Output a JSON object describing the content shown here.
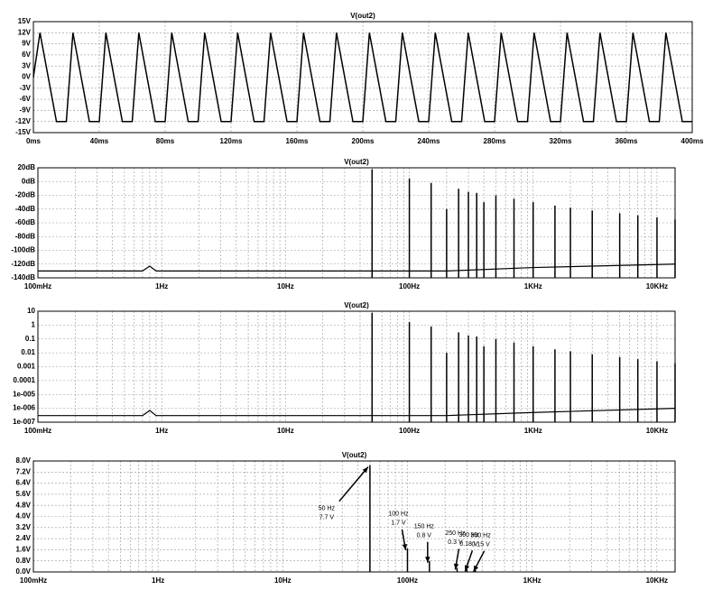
{
  "chart_data": [
    {
      "type": "line",
      "title": "V(out2)",
      "color": "#000000",
      "grid": true,
      "x": [
        0,
        4,
        14,
        20,
        24,
        34,
        40,
        44,
        54,
        60,
        64,
        74,
        80,
        84,
        94,
        100,
        104,
        114,
        120,
        124,
        134,
        140,
        144,
        154,
        160,
        164,
        174,
        180,
        184,
        194,
        200,
        204,
        214,
        220,
        224,
        234,
        240,
        244,
        254,
        260,
        264,
        274,
        280,
        284,
        294,
        300,
        304,
        314,
        320,
        324,
        334,
        340,
        344,
        354,
        360,
        364,
        374,
        380,
        384,
        394,
        400
      ],
      "values": [
        0,
        12,
        -12,
        -12,
        12,
        -12,
        -12,
        12,
        -12,
        -12,
        12,
        -12,
        -12,
        12,
        -12,
        -12,
        12,
        -12,
        -12,
        12,
        -12,
        -12,
        12,
        -12,
        -12,
        12,
        -12,
        -12,
        12,
        -12,
        -12,
        12,
        -12,
        -12,
        12,
        -12,
        -12,
        12,
        -12,
        -12,
        12,
        -12,
        -12,
        12,
        -12,
        -12,
        12,
        -12,
        -12,
        12,
        -12,
        -12,
        12,
        -12,
        -12,
        12,
        -12,
        -12,
        12,
        -12,
        -12
      ],
      "xlim": [
        0,
        400
      ],
      "xticks": [
        {
          "value": 0,
          "label": "0ms"
        },
        {
          "value": 40,
          "label": "40ms"
        },
        {
          "value": 80,
          "label": "80ms"
        },
        {
          "value": 120,
          "label": "120ms"
        },
        {
          "value": 160,
          "label": "160ms"
        },
        {
          "value": 200,
          "label": "200ms"
        },
        {
          "value": 240,
          "label": "240ms"
        },
        {
          "value": 280,
          "label": "280ms"
        },
        {
          "value": 320,
          "label": "320ms"
        },
        {
          "value": 360,
          "label": "360ms"
        },
        {
          "value": 400,
          "label": "400ms"
        }
      ],
      "ylim": [
        -15,
        15
      ],
      "yticks": [
        {
          "value": -15,
          "label": "-15V"
        },
        {
          "value": -12,
          "label": "-12V"
        },
        {
          "value": -9,
          "label": "-9V"
        },
        {
          "value": -6,
          "label": "-6V"
        },
        {
          "value": -3,
          "label": "-3V"
        },
        {
          "value": 0,
          "label": "0V"
        },
        {
          "value": 3,
          "label": "3V"
        },
        {
          "value": 6,
          "label": "6V"
        },
        {
          "value": 9,
          "label": "9V"
        },
        {
          "value": 12,
          "label": "12V"
        },
        {
          "value": 15,
          "label": "15V"
        }
      ]
    },
    {
      "type": "stem",
      "title": "V(out2)",
      "color": "#000000",
      "grid": true,
      "xscale": "log",
      "x": [
        50,
        100,
        150,
        200,
        250,
        300,
        350,
        400,
        500,
        700,
        1000,
        1500,
        2000,
        3000,
        5000,
        7000,
        10000,
        14000
      ],
      "values": [
        17.7,
        4.6,
        -2,
        -40,
        -10.5,
        -15,
        -16.5,
        -30,
        -20,
        -25,
        -30,
        -35,
        -38,
        -42,
        -46,
        -49,
        -52,
        -55
      ],
      "floor_x": [
        0.1,
        0.7,
        0.8,
        0.9,
        200,
        1000,
        14000
      ],
      "floor_values": [
        -130,
        -130,
        -123,
        -130,
        -130,
        -125,
        -120
      ],
      "xlim": [
        0.1,
        14000
      ],
      "xticks": [
        {
          "value": 0.1,
          "label": "100mHz"
        },
        {
          "value": 1,
          "label": "1Hz"
        },
        {
          "value": 10,
          "label": "10Hz"
        },
        {
          "value": 100,
          "label": "100Hz"
        },
        {
          "value": 1000,
          "label": "1KHz"
        },
        {
          "value": 10000,
          "label": "10KHz"
        }
      ],
      "xminorticks": [
        0.2,
        0.3,
        0.4,
        0.5,
        0.6,
        0.7,
        0.8,
        0.9,
        2,
        3,
        4,
        5,
        6,
        7,
        8,
        9,
        20,
        30,
        40,
        50,
        60,
        70,
        80,
        90,
        200,
        300,
        400,
        500,
        600,
        700,
        800,
        900,
        2000,
        3000,
        4000,
        5000,
        6000,
        7000,
        8000,
        9000
      ],
      "ylim": [
        -140,
        20
      ],
      "yticks": [
        {
          "value": -140,
          "label": "-140dB"
        },
        {
          "value": -120,
          "label": "-120dB"
        },
        {
          "value": -100,
          "label": "-100dB"
        },
        {
          "value": -80,
          "label": "-80dB"
        },
        {
          "value": -60,
          "label": "-60dB"
        },
        {
          "value": -40,
          "label": "-40dB"
        },
        {
          "value": -20,
          "label": "-20dB"
        },
        {
          "value": 0,
          "label": "0dB"
        },
        {
          "value": 20,
          "label": "20dB"
        }
      ]
    },
    {
      "type": "stem",
      "title": "V(out2)",
      "color": "#000000",
      "grid": true,
      "xscale": "log",
      "yscale": "log",
      "x": [
        50,
        100,
        150,
        200,
        250,
        300,
        350,
        400,
        500,
        700,
        1000,
        1500,
        2000,
        3000,
        5000,
        7000,
        10000,
        14000
      ],
      "values": [
        7.7,
        1.7,
        0.8,
        0.01,
        0.3,
        0.18,
        0.15,
        0.03,
        0.1,
        0.056,
        0.03,
        0.018,
        0.013,
        0.008,
        0.005,
        0.0035,
        0.0025,
        0.0018
      ],
      "floor_x": [
        0.1,
        0.7,
        0.8,
        0.9,
        200,
        1000,
        14000
      ],
      "floor_values": [
        3e-07,
        3e-07,
        7e-07,
        3e-07,
        3e-07,
        5e-07,
        1e-06
      ],
      "xlim": [
        0.1,
        14000
      ],
      "xticks": [
        {
          "value": 0.1,
          "label": "100mHz"
        },
        {
          "value": 1,
          "label": "1Hz"
        },
        {
          "value": 10,
          "label": "10Hz"
        },
        {
          "value": 100,
          "label": "100Hz"
        },
        {
          "value": 1000,
          "label": "1KHz"
        },
        {
          "value": 10000,
          "label": "10KHz"
        }
      ],
      "xminorticks": [
        0.2,
        0.3,
        0.4,
        0.5,
        0.6,
        0.7,
        0.8,
        0.9,
        2,
        3,
        4,
        5,
        6,
        7,
        8,
        9,
        20,
        30,
        40,
        50,
        60,
        70,
        80,
        90,
        200,
        300,
        400,
        500,
        600,
        700,
        800,
        900,
        2000,
        3000,
        4000,
        5000,
        6000,
        7000,
        8000,
        9000
      ],
      "ylim": [
        1e-07,
        10
      ],
      "yticks": [
        {
          "value": 1e-07,
          "label": "1e-007"
        },
        {
          "value": 1e-06,
          "label": "1e-006"
        },
        {
          "value": 1e-05,
          "label": "1e-005"
        },
        0.0001,
        0.001,
        0.01,
        0.1,
        1,
        10
      ]
    },
    {
      "type": "stem",
      "title": "V(out2)",
      "color": "#000000",
      "grid": true,
      "xscale": "log",
      "x": [
        50,
        100,
        150,
        250,
        300,
        350
      ],
      "values": [
        7.7,
        1.7,
        0.8,
        0.3,
        0.18,
        0.15
      ],
      "freq_labels": [
        "50 Hz",
        "100 Hz",
        "150 Hz",
        "250 Hz",
        "300 Hz",
        "350 Hz"
      ],
      "value_labels": [
        "7.7 V",
        "1.7 V",
        "0.8 V",
        "0.3 V",
        "0.18 V",
        "0.15 V"
      ],
      "xlim": [
        0.1,
        14000
      ],
      "xticks": [
        {
          "value": 0.1,
          "label": "100mHz"
        },
        {
          "value": 1,
          "label": "1Hz"
        },
        {
          "value": 10,
          "label": "10Hz"
        },
        {
          "value": 100,
          "label": "100Hz"
        },
        {
          "value": 1000,
          "label": "1KHz"
        },
        {
          "value": 10000,
          "label": "10KHz"
        }
      ],
      "xminorticks": [
        0.2,
        0.3,
        0.4,
        0.5,
        0.6,
        0.7,
        0.8,
        0.9,
        2,
        3,
        4,
        5,
        6,
        7,
        8,
        9,
        20,
        30,
        40,
        50,
        60,
        70,
        80,
        90,
        200,
        300,
        400,
        500,
        600,
        700,
        800,
        900,
        2000,
        3000,
        4000,
        5000,
        6000,
        7000,
        8000,
        9000
      ],
      "ylim": [
        0,
        8
      ],
      "yticks": [
        {
          "value": 0,
          "label": "0.0V"
        },
        {
          "value": 0.8,
          "label": "0.8V"
        },
        {
          "value": 1.6,
          "label": "1.6V"
        },
        {
          "value": 2.4,
          "label": "2.4V"
        },
        {
          "value": 3.2,
          "label": "3.2V"
        },
        {
          "value": 4,
          "label": "4.0V"
        },
        {
          "value": 4.8,
          "label": "4.8V"
        },
        {
          "value": 5.6,
          "label": "5.6V"
        },
        {
          "value": 6.4,
          "label": "6.4V"
        },
        {
          "value": 7.2,
          "label": "7.2V"
        },
        {
          "value": 8,
          "label": "8.0V"
        }
      ]
    }
  ]
}
